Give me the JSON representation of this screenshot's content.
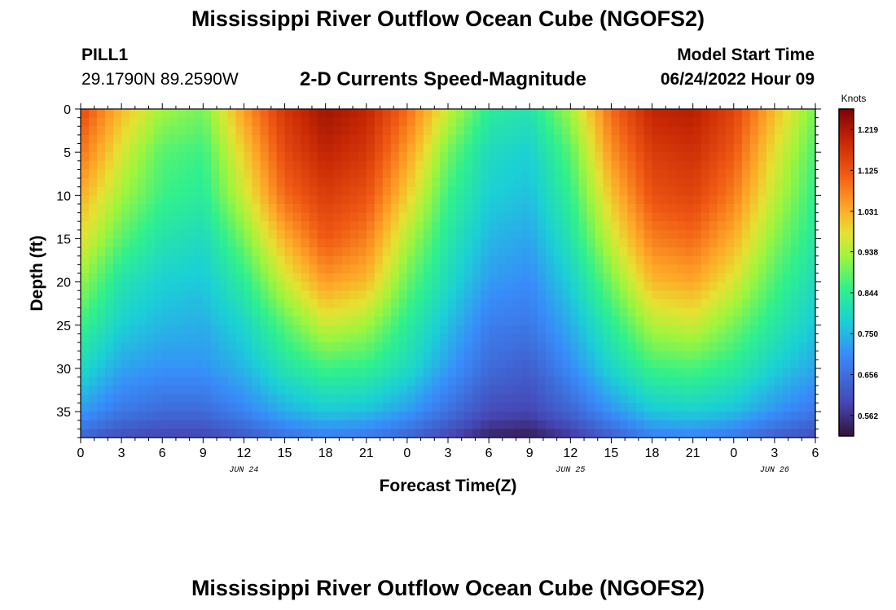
{
  "header": {
    "title": "Mississippi River Outflow Ocean Cube (NGOFS2)",
    "station_id": "PILL1",
    "coordinates": "29.1790N  89.2590W",
    "chart_title": "2-D Currents Speed-Magnitude",
    "model_start_label": "Model Start Time",
    "model_start_value": "06/24/2022 Hour 09"
  },
  "footer": {
    "title": "Mississippi River Outflow Ocean Cube (NGOFS2)"
  },
  "chart_data": {
    "type": "heatmap",
    "title": "2-D Currents Speed-Magnitude",
    "xlabel": "Forecast Time(Z)",
    "ylabel": "Depth (ft)",
    "x_ticks": [
      "0",
      "3",
      "6",
      "9",
      "12",
      "15",
      "18",
      "21",
      "0",
      "3",
      "6",
      "9",
      "12",
      "15",
      "18",
      "21",
      "0",
      "3",
      "6"
    ],
    "x_range_hours": [
      0,
      54
    ],
    "date_labels": [
      {
        "label": "JUN 24",
        "hour": 12
      },
      {
        "label": "JUN 25",
        "hour": 36
      },
      {
        "label": "JUN 26",
        "hour": 51
      }
    ],
    "y_ticks": [
      "0",
      "5",
      "10",
      "15",
      "20",
      "25",
      "30",
      "35"
    ],
    "ylim": [
      0,
      38
    ],
    "y_inverted": true,
    "colorbar": {
      "unit": "Knots",
      "min": 0.515,
      "max": 1.266,
      "tick_labels": [
        "1.219",
        "1.125",
        "1.031",
        "0.938",
        "0.844",
        "0.750",
        "0.656",
        "0.562"
      ],
      "tick_values": [
        1.219,
        1.125,
        1.031,
        0.938,
        0.844,
        0.75,
        0.656,
        0.562
      ]
    },
    "series": [
      {
        "depths_ft": [
          0,
          5,
          10,
          15,
          20,
          25,
          30,
          35,
          38
        ],
        "hours": [
          0,
          3,
          6,
          9,
          12,
          15,
          18,
          21,
          24,
          27,
          30,
          33,
          36,
          39,
          42,
          45,
          48,
          51,
          54
        ],
        "values": [
          [
            1.14,
            1.02,
            0.93,
            0.9,
            1.05,
            1.17,
            1.23,
            1.2,
            1.1,
            0.96,
            0.84,
            0.82,
            0.93,
            1.1,
            1.2,
            1.21,
            1.15,
            1.02,
            0.9
          ],
          [
            1.09,
            0.97,
            0.88,
            0.86,
            1.0,
            1.14,
            1.2,
            1.17,
            1.05,
            0.9,
            0.8,
            0.78,
            0.88,
            1.06,
            1.16,
            1.18,
            1.12,
            0.98,
            0.87
          ],
          [
            1.03,
            0.93,
            0.86,
            0.84,
            0.96,
            1.1,
            1.16,
            1.13,
            1.0,
            0.86,
            0.78,
            0.76,
            0.85,
            1.01,
            1.13,
            1.15,
            1.08,
            0.95,
            0.85
          ],
          [
            0.98,
            0.88,
            0.82,
            0.8,
            0.9,
            1.03,
            1.12,
            1.08,
            0.94,
            0.83,
            0.75,
            0.73,
            0.82,
            0.96,
            1.08,
            1.1,
            1.03,
            0.91,
            0.83
          ],
          [
            0.92,
            0.82,
            0.78,
            0.77,
            0.84,
            0.96,
            1.05,
            1.02,
            0.89,
            0.8,
            0.72,
            0.7,
            0.78,
            0.9,
            1.02,
            1.04,
            0.97,
            0.87,
            0.8
          ],
          [
            0.86,
            0.78,
            0.75,
            0.74,
            0.79,
            0.88,
            0.96,
            0.93,
            0.84,
            0.76,
            0.68,
            0.67,
            0.74,
            0.84,
            0.94,
            0.96,
            0.9,
            0.83,
            0.77
          ],
          [
            0.8,
            0.73,
            0.71,
            0.71,
            0.75,
            0.82,
            0.86,
            0.85,
            0.8,
            0.72,
            0.65,
            0.63,
            0.7,
            0.79,
            0.86,
            0.87,
            0.84,
            0.78,
            0.73
          ],
          [
            0.72,
            0.67,
            0.65,
            0.65,
            0.69,
            0.74,
            0.77,
            0.76,
            0.72,
            0.66,
            0.6,
            0.59,
            0.64,
            0.71,
            0.77,
            0.78,
            0.76,
            0.71,
            0.67
          ],
          [
            0.64,
            0.6,
            0.59,
            0.59,
            0.62,
            0.66,
            0.68,
            0.67,
            0.64,
            0.59,
            0.54,
            0.53,
            0.57,
            0.63,
            0.68,
            0.69,
            0.67,
            0.63,
            0.6
          ]
        ]
      }
    ]
  }
}
